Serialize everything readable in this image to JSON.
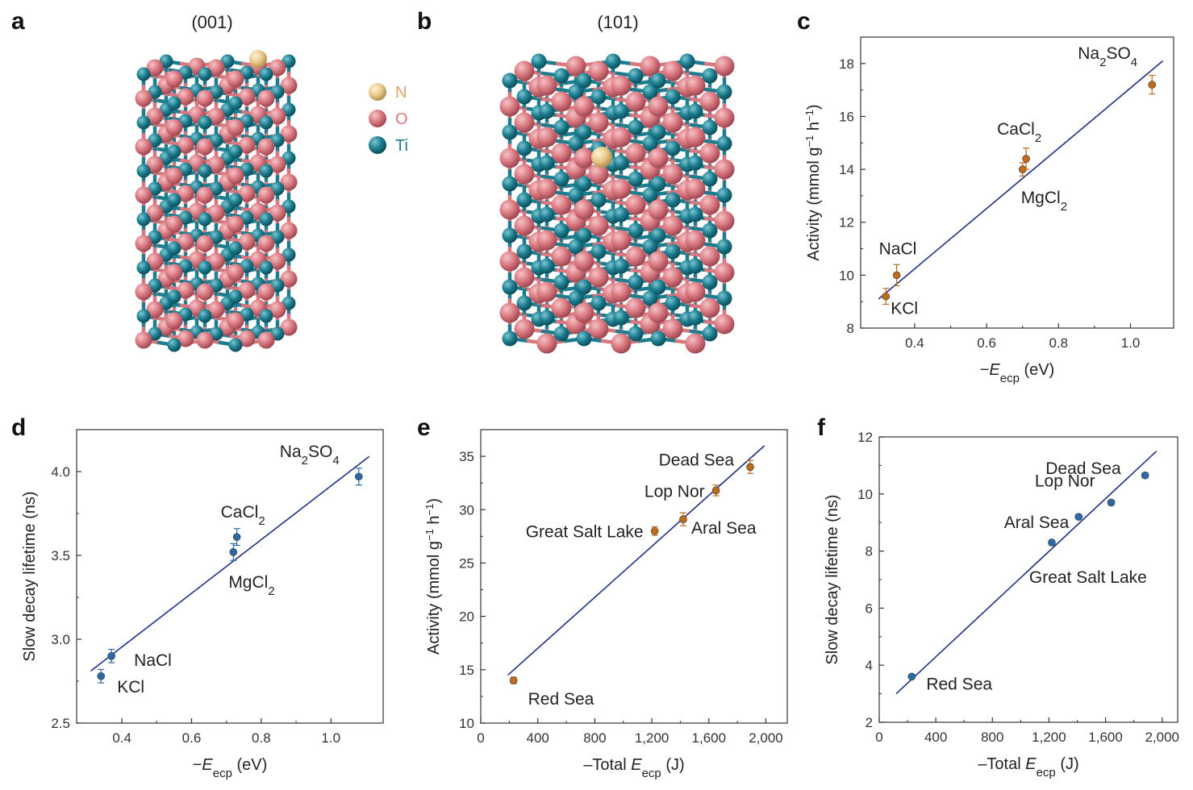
{
  "figure": {
    "panel_labels": [
      "a",
      "b",
      "c",
      "d",
      "e",
      "f"
    ],
    "crystal_titles": [
      "(001)",
      "(101)"
    ],
    "legend": [
      {
        "label": "N",
        "color": "#e8c98a"
      },
      {
        "label": "O",
        "color": "#d9777f"
      },
      {
        "label": "Ti",
        "color": "#1c7d8f"
      }
    ]
  },
  "colors": {
    "fit_line": "#1f2f86",
    "orange": "#c06a1c",
    "blue": "#2b6aa4",
    "O_atom": "#d9777f",
    "Ti_atom": "#1c7d8f",
    "N_atom": "#e8c98a"
  },
  "chart_data": [
    {
      "id": "c",
      "type": "scatter",
      "xlabel": "−E",
      "xlabel_sub": "ecp",
      "xlabel_unit": " (eV)",
      "ylabel": "Activity (mmol g⁻¹ h⁻¹)",
      "xlim": [
        0.25,
        1.12
      ],
      "ylim": [
        8,
        19
      ],
      "xticks": [
        0.4,
        0.6,
        0.8,
        1.0
      ],
      "xticklabels": [
        "0.4",
        "0.6",
        "0.8",
        "1.0"
      ],
      "yticks": [
        8,
        10,
        12,
        14,
        16,
        18
      ],
      "yticklabels": [
        "8",
        "10",
        "12",
        "14",
        "16",
        "18"
      ],
      "marker_color": "orange",
      "points": [
        {
          "label": "KCl",
          "x": 0.32,
          "y": 9.2,
          "err": 0.3
        },
        {
          "label": "NaCl",
          "x": 0.35,
          "y": 10.0,
          "err": 0.4
        },
        {
          "label": "MgCl2",
          "x": 0.7,
          "y": 14.0,
          "err": 0.25
        },
        {
          "label": "CaCl2",
          "x": 0.71,
          "y": 14.4,
          "err": 0.4
        },
        {
          "label": "Na2SO4",
          "x": 1.06,
          "y": 17.2,
          "err": 0.35
        }
      ],
      "fit": [
        [
          0.3,
          9.1
        ],
        [
          1.09,
          18.1
        ]
      ]
    },
    {
      "id": "d",
      "type": "scatter",
      "xlabel": "−E",
      "xlabel_sub": "ecp",
      "xlabel_unit": " (eV)",
      "ylabel": "Slow decay lifetime (ns)",
      "xlim": [
        0.27,
        1.15
      ],
      "ylim": [
        2.5,
        4.25
      ],
      "xticks": [
        0.4,
        0.6,
        0.8,
        1.0
      ],
      "xticklabels": [
        "0.4",
        "0.6",
        "0.8",
        "1.0"
      ],
      "yticks": [
        2.5,
        3.0,
        3.5,
        4.0
      ],
      "yticklabels": [
        "2.5",
        "3.0",
        "3.5",
        "4.0"
      ],
      "marker_color": "blue",
      "points": [
        {
          "label": "KCl",
          "x": 0.34,
          "y": 2.78,
          "err": 0.04
        },
        {
          "label": "NaCl",
          "x": 0.37,
          "y": 2.9,
          "err": 0.04
        },
        {
          "label": "MgCl2",
          "x": 0.72,
          "y": 3.52,
          "err": 0.05
        },
        {
          "label": "CaCl2",
          "x": 0.73,
          "y": 3.61,
          "err": 0.05
        },
        {
          "label": "Na2SO4",
          "x": 1.08,
          "y": 3.97,
          "err": 0.05
        }
      ],
      "fit": [
        [
          0.31,
          2.81
        ],
        [
          1.11,
          4.09
        ]
      ]
    },
    {
      "id": "e",
      "type": "scatter",
      "xlabel": "–Total E",
      "xlabel_sub": "ecp",
      "xlabel_unit": " (J)",
      "ylabel": "Activity (mmol g⁻¹ h⁻¹)",
      "xlim": [
        0,
        2150
      ],
      "ylim": [
        10,
        37.5
      ],
      "xticks": [
        0,
        400,
        800,
        1200,
        1600,
        2000
      ],
      "xticklabels": [
        "0",
        "400",
        "800",
        "1,200",
        "1,600",
        "2,000"
      ],
      "yticks": [
        10,
        15,
        20,
        25,
        30,
        35
      ],
      "yticklabels": [
        "10",
        "15",
        "20",
        "25",
        "30",
        "35"
      ],
      "marker_color": "orange",
      "points": [
        {
          "label": "Red Sea",
          "x": 230,
          "y": 14.0,
          "err": 0.3
        },
        {
          "label": "Great Salt Lake",
          "x": 1220,
          "y": 28.0,
          "err": 0.4
        },
        {
          "label": "Aral Sea",
          "x": 1420,
          "y": 29.1,
          "err": 0.6
        },
        {
          "label": "Lop Nor",
          "x": 1650,
          "y": 31.8,
          "err": 0.5
        },
        {
          "label": "Dead Sea",
          "x": 1890,
          "y": 34.0,
          "err": 0.6
        }
      ],
      "fit": [
        [
          190,
          14.5
        ],
        [
          1990,
          36.0
        ]
      ]
    },
    {
      "id": "f",
      "type": "scatter",
      "xlabel": "–Total E",
      "xlabel_sub": "ecp",
      "xlabel_unit": " (J)",
      "ylabel": "Slow decay lifetime (ns)",
      "xlim": [
        0,
        2110
      ],
      "ylim": [
        2,
        12
      ],
      "xticks": [
        0,
        400,
        800,
        1200,
        1600,
        2000
      ],
      "xticklabels": [
        "0",
        "400",
        "800",
        "1,200",
        "1,600",
        "2,000"
      ],
      "yticks": [
        2,
        4,
        6,
        8,
        10,
        12
      ],
      "yticklabels": [
        "2",
        "4",
        "6",
        "8",
        "10",
        "12"
      ],
      "marker_color": "blue",
      "points": [
        {
          "label": "Red Sea",
          "x": 230,
          "y": 3.6,
          "err": 0.05
        },
        {
          "label": "Great Salt Lake",
          "x": 1220,
          "y": 8.3,
          "err": 0.08
        },
        {
          "label": "Aral Sea",
          "x": 1410,
          "y": 9.2,
          "err": 0.08
        },
        {
          "label": "Lop Nor",
          "x": 1640,
          "y": 9.7,
          "err": 0.08
        },
        {
          "label": "Dead Sea",
          "x": 1880,
          "y": 10.65,
          "err": 0.08
        }
      ],
      "fit": [
        [
          120,
          3.0
        ],
        [
          1960,
          11.5
        ]
      ]
    }
  ]
}
